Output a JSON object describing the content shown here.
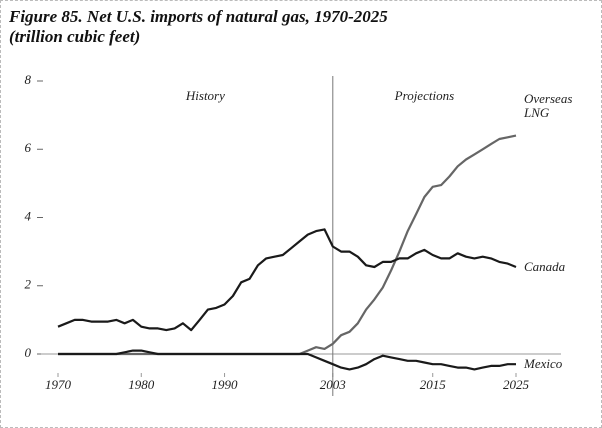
{
  "chart_data": {
    "type": "line",
    "title": "Figure 85. Net U.S. imports of natural gas, 1970-2025 (trillion cubic feet)",
    "annotations": [
      "History",
      "Projections"
    ],
    "projection_start": 2003,
    "x": [
      1970,
      1971,
      1972,
      1973,
      1974,
      1975,
      1976,
      1977,
      1978,
      1979,
      1980,
      1981,
      1982,
      1983,
      1984,
      1985,
      1986,
      1987,
      1988,
      1989,
      1990,
      1991,
      1992,
      1993,
      1994,
      1995,
      1996,
      1997,
      1998,
      1999,
      2000,
      2001,
      2002,
      2003,
      2004,
      2005,
      2006,
      2007,
      2008,
      2009,
      2010,
      2011,
      2012,
      2013,
      2014,
      2015,
      2016,
      2017,
      2018,
      2019,
      2020,
      2021,
      2022,
      2023,
      2024,
      2025
    ],
    "series": [
      {
        "name": "Overseas LNG",
        "color": "#666666",
        "values": [
          0,
          0,
          0,
          0,
          0,
          0,
          0,
          0,
          0,
          0,
          0,
          0,
          0,
          0,
          0,
          0,
          0,
          0,
          0,
          0,
          0,
          0,
          0,
          0,
          0,
          0,
          0,
          0,
          0,
          0,
          0.1,
          0.2,
          0.15,
          0.3,
          0.55,
          0.65,
          0.9,
          1.3,
          1.6,
          1.95,
          2.45,
          3.0,
          3.6,
          4.1,
          4.6,
          4.9,
          4.95,
          5.2,
          5.5,
          5.7,
          5.85,
          6.0,
          6.15,
          6.3,
          6.35,
          6.4
        ]
      },
      {
        "name": "Canada",
        "color": "#1a1a1a",
        "values": [
          0.8,
          0.9,
          1.0,
          1.0,
          0.95,
          0.95,
          0.95,
          1.0,
          0.9,
          1.0,
          0.8,
          0.75,
          0.75,
          0.7,
          0.75,
          0.9,
          0.7,
          1.0,
          1.3,
          1.35,
          1.45,
          1.7,
          2.1,
          2.2,
          2.6,
          2.8,
          2.85,
          2.9,
          3.1,
          3.3,
          3.5,
          3.6,
          3.65,
          3.15,
          3.0,
          3.0,
          2.85,
          2.6,
          2.55,
          2.7,
          2.7,
          2.8,
          2.8,
          2.95,
          3.05,
          2.9,
          2.8,
          2.8,
          2.95,
          2.85,
          2.8,
          2.85,
          2.8,
          2.7,
          2.65,
          2.55
        ]
      },
      {
        "name": "Mexico",
        "color": "#1a1a1a",
        "values": [
          0,
          0,
          0,
          0,
          0,
          0,
          0,
          0,
          0.05,
          0.1,
          0.1,
          0.05,
          0,
          0,
          0,
          0,
          0,
          0,
          0,
          0,
          0,
          0,
          0,
          0,
          0,
          0,
          0,
          0,
          0,
          0,
          0,
          -0.1,
          -0.2,
          -0.3,
          -0.4,
          -0.45,
          -0.4,
          -0.3,
          -0.15,
          -0.05,
          -0.1,
          -0.15,
          -0.2,
          -0.2,
          -0.25,
          -0.3,
          -0.3,
          -0.35,
          -0.4,
          -0.4,
          -0.45,
          -0.4,
          -0.35,
          -0.35,
          -0.3,
          -0.3
        ]
      }
    ],
    "xlim": [
      1970,
      2025
    ],
    "xticks": [
      1970,
      1980,
      1990,
      2003,
      2015,
      2025
    ],
    "ylim": [
      0,
      8
    ],
    "yticks": [
      0,
      2,
      4,
      6,
      8
    ]
  }
}
